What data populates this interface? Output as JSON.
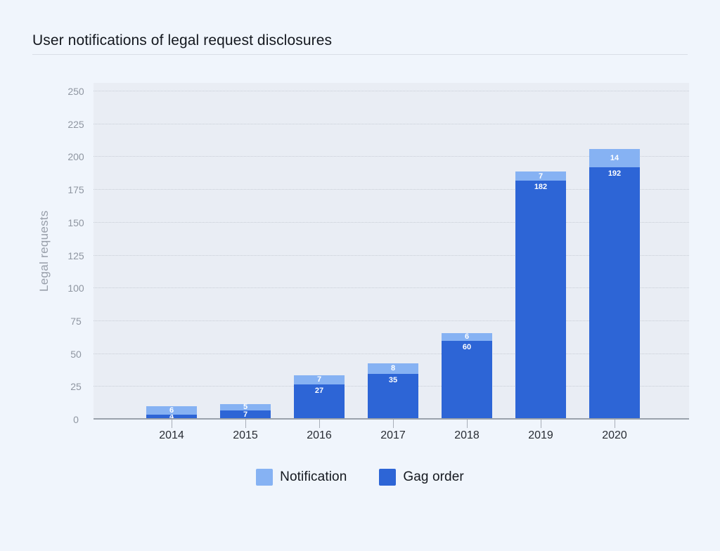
{
  "chart_data": {
    "type": "bar",
    "stacked": true,
    "title": "User notifications of legal request disclosures",
    "categories": [
      "2014",
      "2015",
      "2016",
      "2017",
      "2018",
      "2019",
      "2020"
    ],
    "series": [
      {
        "name": "Gag order",
        "color": "#2D65D6",
        "values": [
          4,
          7,
          27,
          35,
          60,
          182,
          192
        ]
      },
      {
        "name": "Notification",
        "color": "#86B2F3",
        "values": [
          6,
          5,
          7,
          8,
          6,
          7,
          14
        ]
      }
    ],
    "xlabel": "",
    "ylabel": "Legal requests",
    "ylim": [
      0,
      250
    ],
    "yticks": [
      0,
      25,
      50,
      75,
      100,
      125,
      150,
      175,
      200,
      225,
      250
    ],
    "grid": "horizontal-dotted",
    "legend_position": "bottom",
    "legend_order": [
      "Notification",
      "Gag order"
    ],
    "value_labels": true,
    "value_label_color": "#FFFFFF"
  },
  "colors": {
    "page_bg": "#F0F5FC",
    "plot_bg": "#E9EDF4",
    "gridline": "#C8CDD6",
    "axis_line": "#9AA1AB",
    "tick_mark": "#A8AEB8",
    "title_text": "#14181F",
    "x_label_text": "#282C33",
    "y_label_text": "#8F96A1",
    "y_axis_title_text": "#979EA9",
    "legend_text": "#14181F",
    "divider": "#D9DEE7",
    "notification": "#86B2F3",
    "gag_order": "#2D65D6"
  }
}
